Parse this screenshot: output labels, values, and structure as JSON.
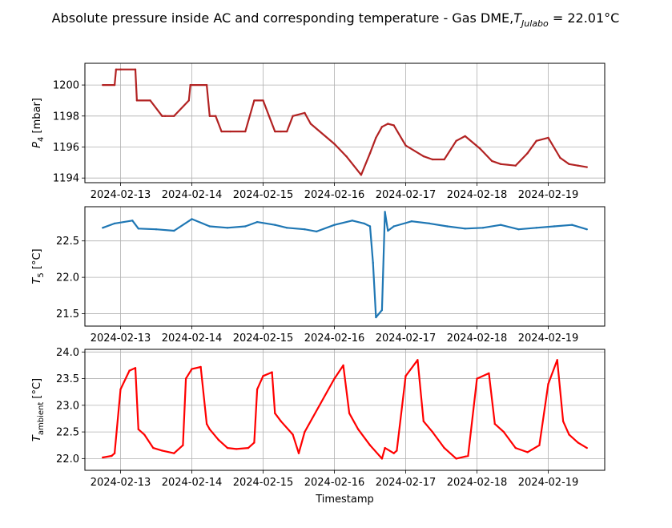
{
  "title": {
    "main": "Absolute pressure inside AC and corresponding temperature - Gas DME,",
    "var": "T",
    "var_sub": "Julabo",
    "value": " = 22.01°C"
  },
  "chart_data": [
    {
      "type": "line",
      "ylabel": {
        "var": "P",
        "sub": "4",
        "unit": " [mbar]"
      },
      "xlabel": "",
      "ylim": [
        1193.7,
        1201.4
      ],
      "yticks": [
        "1194",
        "1196",
        "1198",
        "1200"
      ],
      "xlim": [
        "2024-02-12 12:00",
        "2024-02-19 19:00"
      ],
      "xticks": [
        "2024-02-13",
        "2024-02-14",
        "2024-02-15",
        "2024-02-16",
        "2024-02-17",
        "2024-02-18",
        "2024-02-19"
      ],
      "grid": true,
      "series": [
        {
          "color": "#b22222",
          "x": [
            "2024-02-12 18:00",
            "2024-02-12 22:00",
            "2024-02-12 22:30",
            "2024-02-13 00:00",
            "2024-02-13 05:00",
            "2024-02-13 05:30",
            "2024-02-13 10:00",
            "2024-02-13 14:00",
            "2024-02-13 15:00",
            "2024-02-13 18:00",
            "2024-02-13 23:00",
            "2024-02-13 23:30",
            "2024-02-14 05:00",
            "2024-02-14 06:00",
            "2024-02-14 08:00",
            "2024-02-14 10:00",
            "2024-02-14 13:00",
            "2024-02-14 18:00",
            "2024-02-14 21:00",
            "2024-02-15 00:00",
            "2024-02-15 02:00",
            "2024-02-15 04:00",
            "2024-02-15 06:00",
            "2024-02-15 08:00",
            "2024-02-15 10:00",
            "2024-02-15 14:00",
            "2024-02-15 16:00",
            "2024-02-16 00:00",
            "2024-02-16 04:00",
            "2024-02-16 09:00",
            "2024-02-16 12:00",
            "2024-02-16 14:00",
            "2024-02-16 16:00",
            "2024-02-16 18:00",
            "2024-02-16 20:00",
            "2024-02-17 00:00",
            "2024-02-17 06:00",
            "2024-02-17 09:00",
            "2024-02-17 13:00",
            "2024-02-17 17:00",
            "2024-02-17 20:00",
            "2024-02-18 01:00",
            "2024-02-18 05:00",
            "2024-02-18 08:00",
            "2024-02-18 13:00",
            "2024-02-18 17:00",
            "2024-02-18 20:00",
            "2024-02-19 00:00",
            "2024-02-19 04:00",
            "2024-02-19 07:00",
            "2024-02-19 10:00",
            "2024-02-19 13:00"
          ],
          "y": [
            1200,
            1200,
            1201,
            1201,
            1201,
            1199,
            1199,
            1198,
            1198,
            1198,
            1199,
            1200,
            1200,
            1198,
            1198,
            1197,
            1197,
            1197,
            1199,
            1199,
            1198,
            1197,
            1197,
            1197,
            1198,
            1198.2,
            1197.5,
            1196.2,
            1195.4,
            1194.2,
            1195.6,
            1196.6,
            1197.3,
            1197.5,
            1197.4,
            1196.1,
            1195.4,
            1195.2,
            1195.2,
            1196.4,
            1196.7,
            1195.9,
            1195.1,
            1194.9,
            1194.8,
            1195.6,
            1196.4,
            1196.6,
            1195.3,
            1194.9,
            1194.8,
            1194.7
          ]
        }
      ]
    },
    {
      "type": "line",
      "ylabel": {
        "var": "T",
        "sub": "5",
        "unit": " [°C]"
      },
      "xlabel": "",
      "ylim": [
        21.33,
        22.97
      ],
      "yticks": [
        "21.5",
        "22.0",
        "22.5"
      ],
      "xlim": [
        "2024-02-12 12:00",
        "2024-02-19 19:00"
      ],
      "xticks": [
        "2024-02-13",
        "2024-02-14",
        "2024-02-15",
        "2024-02-16",
        "2024-02-17",
        "2024-02-18",
        "2024-02-19"
      ],
      "grid": true,
      "series": [
        {
          "color": "#1f77b4",
          "x": [
            "2024-02-12 18:00",
            "2024-02-12 22:00",
            "2024-02-13 04:00",
            "2024-02-13 06:00",
            "2024-02-13 12:00",
            "2024-02-13 18:00",
            "2024-02-14 00:00",
            "2024-02-14 06:00",
            "2024-02-14 12:00",
            "2024-02-14 18:00",
            "2024-02-14 22:00",
            "2024-02-15 04:00",
            "2024-02-15 08:00",
            "2024-02-15 14:00",
            "2024-02-15 18:00",
            "2024-02-16 00:00",
            "2024-02-16 06:00",
            "2024-02-16 10:00",
            "2024-02-16 12:00",
            "2024-02-16 13:00",
            "2024-02-16 14:00",
            "2024-02-16 16:00",
            "2024-02-16 17:00",
            "2024-02-16 18:00",
            "2024-02-16 20:00",
            "2024-02-17 02:00",
            "2024-02-17 08:00",
            "2024-02-17 14:00",
            "2024-02-17 20:00",
            "2024-02-18 02:00",
            "2024-02-18 08:00",
            "2024-02-18 14:00",
            "2024-02-18 20:00",
            "2024-02-19 02:00",
            "2024-02-19 08:00",
            "2024-02-19 13:00"
          ],
          "y": [
            22.68,
            22.74,
            22.78,
            22.67,
            22.66,
            22.64,
            22.8,
            22.7,
            22.68,
            22.7,
            22.76,
            22.72,
            22.68,
            22.66,
            22.63,
            22.72,
            22.78,
            22.74,
            22.7,
            22.2,
            21.45,
            21.55,
            22.9,
            22.64,
            22.7,
            22.77,
            22.74,
            22.7,
            22.67,
            22.68,
            22.72,
            22.66,
            22.68,
            22.7,
            22.72,
            22.66
          ]
        }
      ]
    },
    {
      "type": "line",
      "ylabel": {
        "var": "T",
        "sub": "ambient",
        "unit": " [°C]"
      },
      "xlabel": "Timestamp",
      "ylim": [
        21.78,
        24.05
      ],
      "yticks": [
        "22.0",
        "22.5",
        "23.0",
        "23.5",
        "24.0"
      ],
      "xlim": [
        "2024-02-12 12:00",
        "2024-02-19 19:00"
      ],
      "xticks": [
        "2024-02-13",
        "2024-02-14",
        "2024-02-15",
        "2024-02-16",
        "2024-02-17",
        "2024-02-18",
        "2024-02-19"
      ],
      "grid": true,
      "series": [
        {
          "color": "#ff0000",
          "x": [
            "2024-02-12 18:00",
            "2024-02-12 21:00",
            "2024-02-12 22:00",
            "2024-02-13 00:00",
            "2024-02-13 03:00",
            "2024-02-13 05:00",
            "2024-02-13 06:00",
            "2024-02-13 08:00",
            "2024-02-13 11:00",
            "2024-02-13 14:00",
            "2024-02-13 18:00",
            "2024-02-13 21:00",
            "2024-02-13 22:00",
            "2024-02-14 00:00",
            "2024-02-14 03:00",
            "2024-02-14 05:00",
            "2024-02-14 06:00",
            "2024-02-14 09:00",
            "2024-02-14 12:00",
            "2024-02-14 15:00",
            "2024-02-14 19:00",
            "2024-02-14 21:00",
            "2024-02-14 22:00",
            "2024-02-15 00:00",
            "2024-02-15 03:00",
            "2024-02-15 04:00",
            "2024-02-15 06:00",
            "2024-02-15 10:00",
            "2024-02-15 12:00",
            "2024-02-15 14:00",
            "2024-02-16 00:00",
            "2024-02-16 03:00",
            "2024-02-16 05:00",
            "2024-02-16 08:00",
            "2024-02-16 12:00",
            "2024-02-16 16:00",
            "2024-02-16 17:00",
            "2024-02-16 20:00",
            "2024-02-16 21:00",
            "2024-02-17 00:00",
            "2024-02-17 04:00",
            "2024-02-17 06:00",
            "2024-02-17 09:00",
            "2024-02-17 13:00",
            "2024-02-17 17:00",
            "2024-02-17 21:00",
            "2024-02-18 00:00",
            "2024-02-18 04:00",
            "2024-02-18 06:00",
            "2024-02-18 09:00",
            "2024-02-18 13:00",
            "2024-02-18 17:00",
            "2024-02-18 21:00",
            "2024-02-19 00:00",
            "2024-02-19 03:00",
            "2024-02-19 05:00",
            "2024-02-19 07:00",
            "2024-02-19 10:00",
            "2024-02-19 13:00"
          ],
          "y": [
            22.02,
            22.05,
            22.1,
            23.3,
            23.65,
            23.7,
            22.55,
            22.45,
            22.2,
            22.15,
            22.1,
            22.25,
            23.5,
            23.68,
            23.72,
            22.65,
            22.55,
            22.35,
            22.2,
            22.18,
            22.2,
            22.3,
            23.3,
            23.55,
            23.62,
            22.85,
            22.7,
            22.45,
            22.1,
            22.5,
            23.5,
            23.75,
            22.85,
            22.55,
            22.25,
            22.0,
            22.2,
            22.1,
            22.15,
            23.55,
            23.85,
            22.7,
            22.5,
            22.2,
            22.0,
            22.05,
            23.5,
            23.6,
            22.65,
            22.5,
            22.2,
            22.12,
            22.25,
            23.4,
            23.85,
            22.7,
            22.45,
            22.3,
            22.2
          ]
        }
      ]
    }
  ]
}
